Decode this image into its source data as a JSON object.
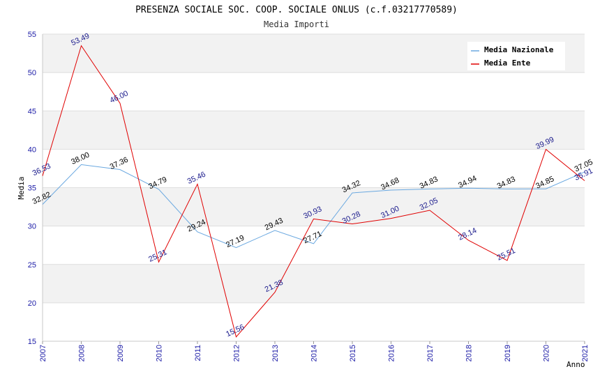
{
  "chart_data": {
    "type": "line",
    "title": "PRESENZA SOCIALE SOC. COOP. SOCIALE ONLUS (c.f.03217770589)",
    "subtitle": "Media Importi",
    "xlabel": "Anno",
    "ylabel": "Media",
    "ylim": [
      15,
      55
    ],
    "yticks": [
      15,
      20,
      25,
      30,
      35,
      40,
      45,
      50,
      55
    ],
    "x": [
      2007,
      2008,
      2009,
      2010,
      2011,
      2012,
      2013,
      2014,
      2015,
      2016,
      2017,
      2018,
      2019,
      2020,
      2021
    ],
    "grid": true,
    "legend_position": "top-right",
    "series": [
      {
        "name": "Media Nazionale",
        "color": "#6aa8e0",
        "values": [
          32.82,
          38.0,
          37.36,
          34.79,
          29.24,
          27.19,
          29.43,
          27.71,
          34.32,
          34.68,
          34.83,
          34.94,
          34.83,
          34.85,
          37.05
        ],
        "labels": [
          "32.82",
          "38.00",
          "37.36",
          "34.79",
          "29.24",
          "27.19",
          "29.43",
          "27.71",
          "34.32",
          "34.68",
          "34.83",
          "34.94",
          "34.83",
          "34.85",
          "37.05"
        ]
      },
      {
        "name": "Media Ente",
        "color": "#e00000",
        "values": [
          36.53,
          53.49,
          46.0,
          25.31,
          35.46,
          15.56,
          21.38,
          30.93,
          30.28,
          31.0,
          32.05,
          28.14,
          25.51,
          39.99,
          35.91
        ],
        "labels": [
          "36.53",
          "53.49",
          "46.00",
          "25.31",
          "35.46",
          "15.56",
          "21.38",
          "30.93",
          "30.28",
          "31.00",
          "32.05",
          "28.14",
          "25.51",
          "39.99",
          "35.91"
        ]
      }
    ]
  }
}
